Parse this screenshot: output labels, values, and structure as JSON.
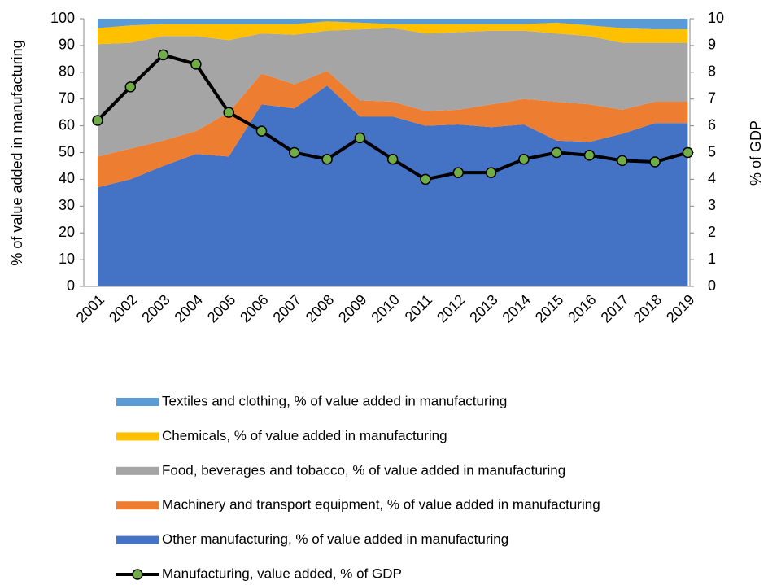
{
  "chart_data": {
    "type": "stacked_area_line",
    "categories": [
      "2001",
      "2002",
      "2003",
      "2004",
      "2005",
      "2006",
      "2007",
      "2008",
      "2009",
      "2010",
      "2011",
      "2012",
      "2013",
      "2014",
      "2015",
      "2016",
      "2017",
      "2018",
      "2019"
    ],
    "series": [
      {
        "name": "Textiles and clothing, % of value added in manufacturing",
        "color": "#5b9bd5",
        "values": [
          3.5,
          2.5,
          2,
          2,
          2,
          2,
          2,
          1,
          1.5,
          2,
          2,
          2,
          2,
          2,
          1.5,
          2.5,
          3.5,
          4,
          4
        ]
      },
      {
        "name": "Chemicals, % of value added in manufacturing",
        "color": "#ffc000",
        "values": [
          6,
          6.5,
          4.5,
          4.5,
          6,
          3.5,
          4,
          3.5,
          2.5,
          1.5,
          3.5,
          3,
          2.5,
          2.5,
          4,
          4,
          5.5,
          5,
          5
        ]
      },
      {
        "name": "Food, beverages and tobacco, % of value added in manufacturing",
        "color": "#a5a5a5",
        "values": [
          42,
          39.5,
          39,
          35.5,
          27,
          15,
          18.5,
          15,
          26.5,
          27.5,
          29,
          29,
          27.5,
          25.5,
          25.5,
          25.5,
          25,
          22,
          22
        ]
      },
      {
        "name": "Machinery and transport equipment, % of value added in manufacturing",
        "color": "#ed7d31",
        "values": [
          11.5,
          11.5,
          9.5,
          8.5,
          16.5,
          11.5,
          9,
          5.5,
          6,
          5.5,
          5.5,
          5.5,
          8.5,
          9.5,
          14.5,
          14,
          9,
          8,
          8
        ]
      },
      {
        "name": "Other manufacturing, % of value added in manufacturing",
        "color": "#4472c4",
        "values": [
          37,
          40,
          45,
          49.5,
          48.5,
          68,
          66.5,
          75,
          63.5,
          63.5,
          60,
          60.5,
          59.5,
          60.5,
          54.5,
          54,
          57,
          61,
          61
        ]
      },
      {
        "name": "Manufacturing, value added, % of GDP",
        "color": "#000000",
        "marker_color": "#70ad47",
        "axis": "y2",
        "values": [
          6.2,
          7.45,
          8.65,
          8.3,
          6.5,
          5.8,
          5.0,
          4.75,
          5.55,
          4.75,
          4.0,
          4.25,
          4.25,
          4.75,
          5.0,
          4.9,
          4.7,
          4.65,
          5.0
        ]
      }
    ],
    "ylabel": "% of value added in manufacturing",
    "y2label": "% of GDP",
    "ylim": [
      0,
      100
    ],
    "yticks": [
      0,
      10,
      20,
      30,
      40,
      50,
      60,
      70,
      80,
      90,
      100
    ],
    "y2lim": [
      0,
      10
    ],
    "y2ticks": [
      0,
      1,
      2,
      3,
      4,
      5,
      6,
      7,
      8,
      9,
      10
    ],
    "legend": "bottom"
  }
}
